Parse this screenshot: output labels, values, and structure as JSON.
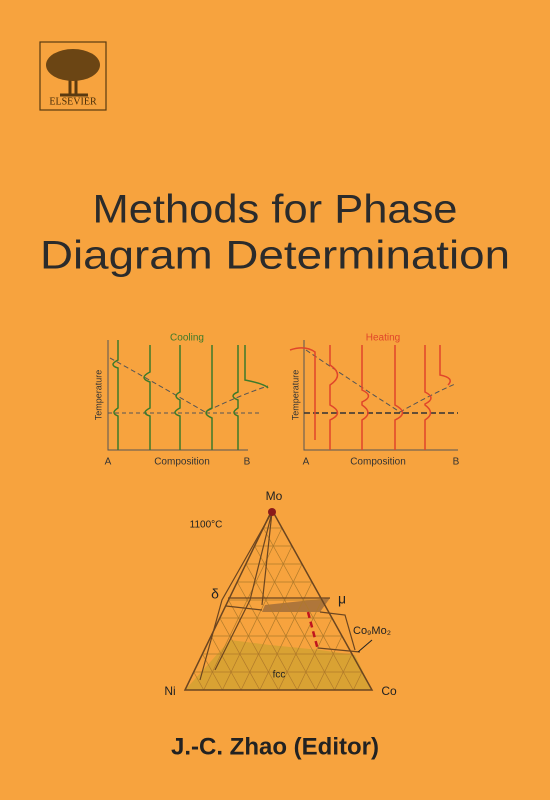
{
  "logo": {
    "text": "ELSEVIER"
  },
  "title": {
    "lines": [
      "Methods for Phase",
      "Diagram Determination"
    ]
  },
  "figures": {
    "cooling": {
      "label": "Cooling",
      "y_axis": "Temperature",
      "x_axis": "Composition",
      "left": "A",
      "right": "B"
    },
    "heating": {
      "label": "Heating",
      "y_axis": "Temperature",
      "x_axis": "Composition",
      "left": "A",
      "right": "B"
    },
    "ternary": {
      "temperature": "1100°C",
      "top": "Mo",
      "left": "Ni",
      "right": "Co",
      "phases": [
        "δ",
        "μ",
        "Co₉Mo₂",
        "fcc"
      ]
    }
  },
  "author": "J.-C. Zhao (Editor)"
}
